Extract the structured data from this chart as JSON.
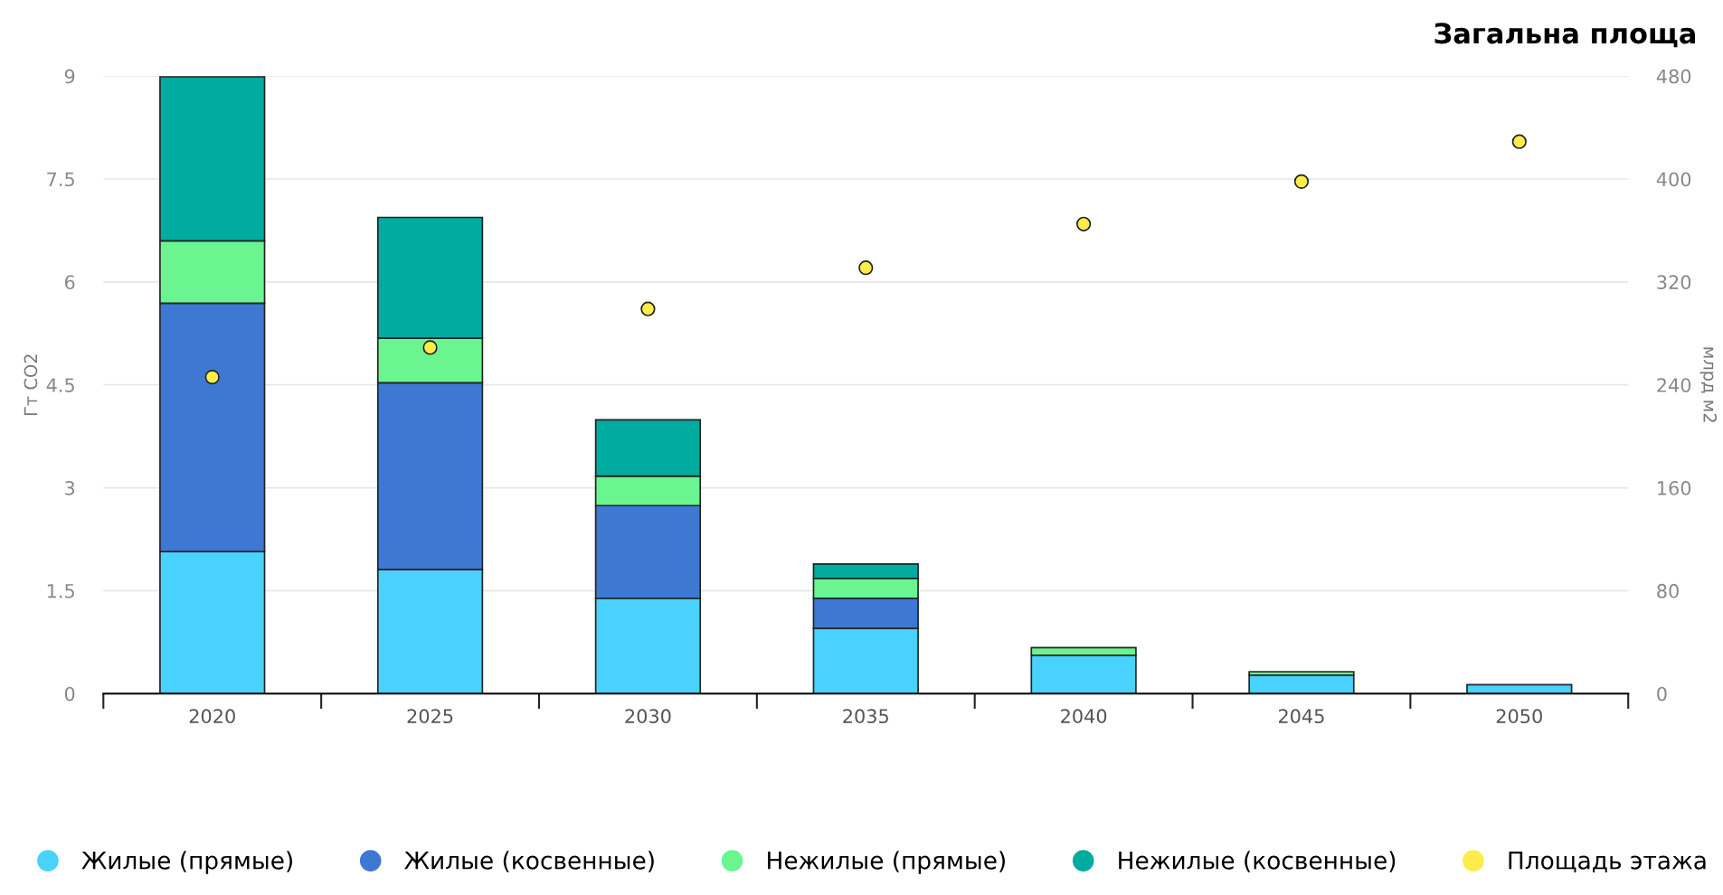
{
  "chart_data": {
    "type": "bar",
    "title": "Загальна площа",
    "ylabel": "Гт CO2",
    "y2label": "млрд м2",
    "stacked": true,
    "categories": [
      "2020",
      "2025",
      "2030",
      "2035",
      "2040",
      "2045",
      "2050"
    ],
    "series": [
      {
        "name": "Жилые (прямые)",
        "color": "#48d2fd",
        "values": [
          2.07,
          1.81,
          1.39,
          0.95,
          0.56,
          0.27,
          0.13
        ]
      },
      {
        "name": "Жилые (косвенные)",
        "color": "#3e78d2",
        "values": [
          3.62,
          2.72,
          1.35,
          0.44,
          null,
          null,
          null
        ]
      },
      {
        "name": "Нежилые (прямые)",
        "color": "#6af590",
        "values": [
          0.91,
          0.65,
          0.43,
          0.29,
          0.11,
          0.05,
          null
        ]
      },
      {
        "name": "Нежилые (косвенные)",
        "color": "#00ab9f",
        "values": [
          2.39,
          1.76,
          0.82,
          0.21,
          null,
          null,
          null
        ]
      },
      {
        "name": "Площадь этажа",
        "color": "#fdec4a",
        "type": "scatter",
        "axis": "y2",
        "values": [
          246,
          269,
          299,
          331,
          365,
          398,
          429
        ]
      }
    ],
    "ylim": [
      0,
      9
    ],
    "yticks": [
      0,
      1.5,
      3,
      4.5,
      6,
      7.5,
      9
    ],
    "y2lim": [
      0,
      480
    ],
    "y2ticks": [
      0,
      80,
      160,
      240,
      320,
      400,
      480
    ],
    "grid": "y",
    "legend": "bottom",
    "marker": "circle"
  }
}
